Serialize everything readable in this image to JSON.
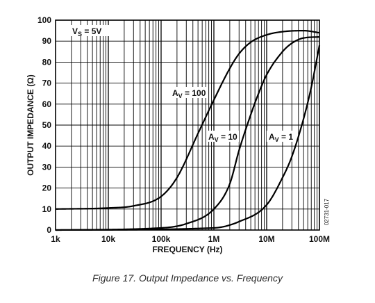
{
  "caption": "Figure 17. Output Impedance vs. Frequency",
  "figure_id": "02731-017",
  "chart_data": {
    "type": "line",
    "xlabel": "FREQUENCY (Hz)",
    "ylabel": "OUTPUT IMPEDANCE (Ω)",
    "x_scale": "log",
    "xlim": [
      1000,
      100000000
    ],
    "ylim": [
      0,
      100
    ],
    "x_tick_labels": [
      "1k",
      "10k",
      "100k",
      "1M",
      "10M",
      "100M"
    ],
    "x_tick_values": [
      1000,
      10000,
      100000,
      1000000,
      10000000,
      100000000
    ],
    "y_ticks": [
      0,
      10,
      20,
      30,
      40,
      50,
      60,
      70,
      80,
      90,
      100
    ],
    "grid": true,
    "annotations": [
      {
        "main": "V",
        "sub": "S",
        "rest": " = 5V"
      },
      {
        "main": "A",
        "sub": "V",
        "rest": " = 100"
      },
      {
        "main": "A",
        "sub": "V",
        "rest": " = 10"
      },
      {
        "main": "A",
        "sub": "V",
        "rest": " = 1"
      }
    ],
    "series": [
      {
        "points": [
          [
            1000,
            10
          ],
          [
            10000,
            10.5
          ],
          [
            30000,
            11.5
          ],
          [
            100000,
            16
          ],
          [
            200000,
            25
          ],
          [
            500000,
            46
          ],
          [
            1000000,
            62
          ],
          [
            2000000,
            77
          ],
          [
            3000000,
            84
          ],
          [
            5000000,
            89.5
          ],
          [
            10000000,
            93
          ],
          [
            20000000,
            94.5
          ],
          [
            50000000,
            95
          ],
          [
            100000000,
            94
          ]
        ]
      },
      {
        "points": [
          [
            1000,
            0
          ],
          [
            100000,
            1
          ],
          [
            300000,
            3
          ],
          [
            1000000,
            10
          ],
          [
            2000000,
            22
          ],
          [
            3000000,
            38
          ],
          [
            5000000,
            55
          ],
          [
            7000000,
            65
          ],
          [
            10000000,
            74
          ],
          [
            20000000,
            85
          ],
          [
            30000000,
            89
          ],
          [
            50000000,
            91.5
          ],
          [
            100000000,
            92
          ]
        ]
      },
      {
        "points": [
          [
            1000,
            0
          ],
          [
            1000000,
            1
          ],
          [
            3000000,
            4
          ],
          [
            10000000,
            12
          ],
          [
            20000000,
            25
          ],
          [
            30000000,
            35
          ],
          [
            50000000,
            53
          ],
          [
            70000000,
            68
          ],
          [
            100000000,
            88
          ]
        ]
      }
    ]
  }
}
